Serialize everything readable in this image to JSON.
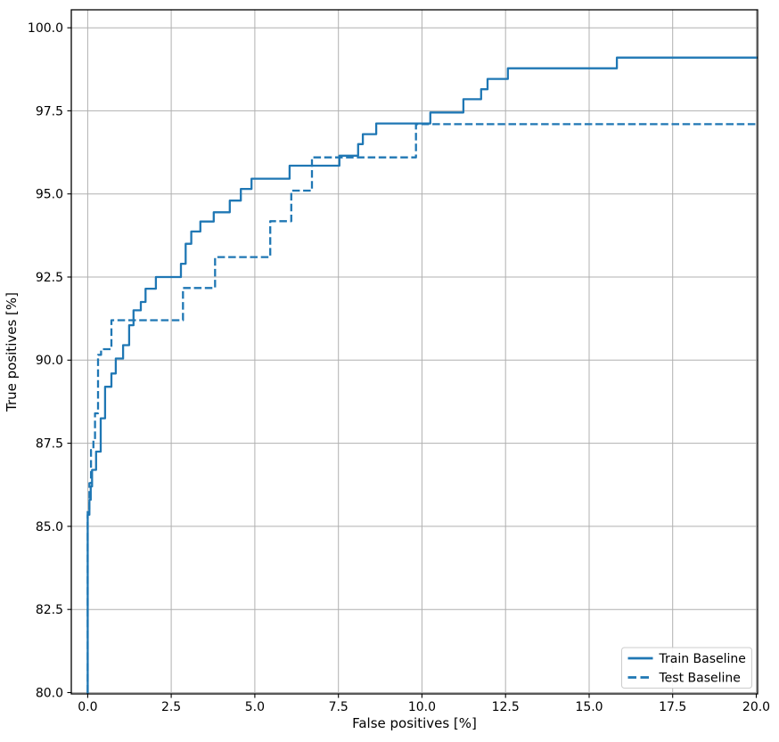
{
  "chart_data": {
    "type": "line",
    "subtype": "roc-step-curves",
    "title": "",
    "xlabel": "False positives [%]",
    "ylabel": "True positives [%]",
    "xlim": [
      -0.49,
      20.04
    ],
    "ylim": [
      79.96,
      100.54
    ],
    "xtick_values": [
      0,
      2.5,
      5,
      7.5,
      10,
      12.5,
      15,
      17.5,
      20
    ],
    "xtick_labels": [
      "0.0",
      "2.5",
      "5.0",
      "7.5",
      "10.0",
      "12.5",
      "15.0",
      "17.5",
      "20.0"
    ],
    "ytick_values": [
      80,
      82.5,
      85,
      87.5,
      90,
      92.5,
      95,
      97.5,
      100
    ],
    "ytick_labels": [
      "80.0",
      "82.5",
      "85.0",
      "87.5",
      "90.0",
      "92.5",
      "95.0",
      "97.5",
      "100.0"
    ],
    "grid": true,
    "grid_color": "#b0b0b0",
    "line_color": "#1f77b4",
    "legend_position": "lower right",
    "series": [
      {
        "name": "Train Baseline",
        "style": "solid",
        "step_points": [
          [
            0,
            80
          ],
          [
            0,
            85.35
          ],
          [
            0.05,
            85.8
          ],
          [
            0.09,
            86.2
          ],
          [
            0.13,
            86.7
          ],
          [
            0.25,
            87.25
          ],
          [
            0.39,
            88.25
          ],
          [
            0.52,
            89.2
          ],
          [
            0.71,
            89.6
          ],
          [
            0.84,
            90.05
          ],
          [
            1.06,
            90.45
          ],
          [
            1.24,
            91.05
          ],
          [
            1.37,
            91.5
          ],
          [
            1.59,
            91.75
          ],
          [
            1.73,
            92.15
          ],
          [
            2.04,
            92.5
          ],
          [
            2.79,
            92.9
          ],
          [
            2.93,
            93.5
          ],
          [
            3.1,
            93.87
          ],
          [
            3.37,
            94.17
          ],
          [
            3.77,
            94.45
          ],
          [
            4.25,
            94.8
          ],
          [
            4.58,
            95.15
          ],
          [
            4.9,
            95.46
          ],
          [
            6.04,
            95.85
          ],
          [
            7.53,
            96.15
          ],
          [
            8.09,
            96.5
          ],
          [
            8.23,
            96.8
          ],
          [
            8.63,
            97.12
          ],
          [
            10.25,
            97.45
          ],
          [
            11.24,
            97.85
          ],
          [
            11.77,
            98.15
          ],
          [
            11.96,
            98.46
          ],
          [
            12.57,
            98.78
          ],
          [
            15.83,
            99.1
          ],
          [
            20,
            99.1
          ]
        ]
      },
      {
        "name": "Test Baseline",
        "style": "dashed",
        "step_points": [
          [
            0,
            80
          ],
          [
            0,
            85.5
          ],
          [
            0.05,
            86.3
          ],
          [
            0.1,
            87.3
          ],
          [
            0.17,
            87.62
          ],
          [
            0.22,
            88.4
          ],
          [
            0.31,
            90.16
          ],
          [
            0.4,
            90.33
          ],
          [
            0.71,
            91.2
          ],
          [
            2.85,
            92.17
          ],
          [
            3.81,
            93.1
          ],
          [
            5.46,
            94.18
          ],
          [
            6.09,
            95.1
          ],
          [
            6.71,
            96.1
          ],
          [
            9.82,
            97.1
          ],
          [
            20,
            97.1
          ]
        ]
      }
    ]
  }
}
